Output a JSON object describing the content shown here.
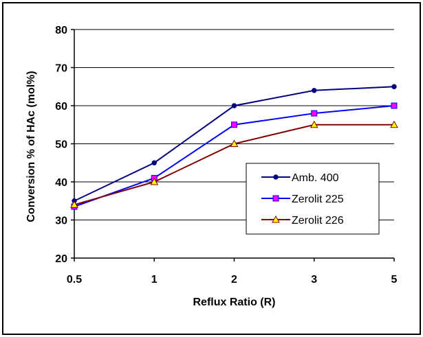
{
  "chart_data": {
    "type": "line",
    "categories": [
      "0.5",
      "1",
      "2",
      "3",
      "5"
    ],
    "xlabel": "Reflux Ratio (R)",
    "ylabel": "Conversion % of HAc (mol%)",
    "ylim": [
      20,
      80
    ],
    "yticks": [
      20,
      30,
      40,
      50,
      60,
      70,
      80
    ],
    "grid": "horizontal",
    "legend_position": "inside-right",
    "series": [
      {
        "name": "Amb. 400",
        "values": [
          35,
          45,
          60,
          64,
          65
        ],
        "color": "#000080",
        "marker": "circle"
      },
      {
        "name": "Zerolit 225",
        "values": [
          33.5,
          41,
          55,
          58,
          60
        ],
        "color": "#0000ff",
        "marker": "square",
        "marker_fill": "#ff00ff"
      },
      {
        "name": "Zerolit 226",
        "values": [
          34,
          40,
          50,
          55,
          55
        ],
        "color": "#800000",
        "marker": "triangle",
        "marker_fill": "#ffff00"
      }
    ]
  }
}
